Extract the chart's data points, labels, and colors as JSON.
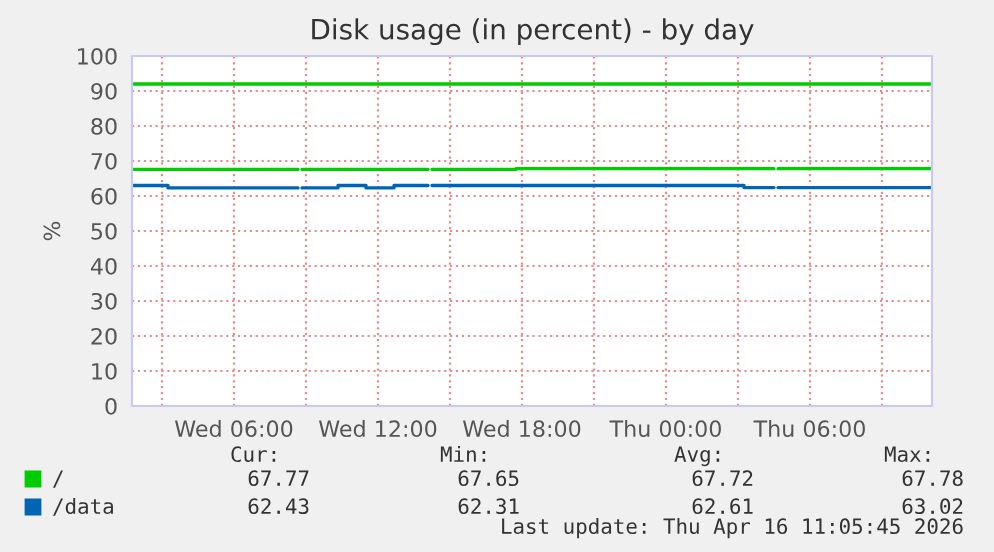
{
  "chart_data": {
    "type": "step",
    "title": "Disk usage (in percent) - by day",
    "ylabel": "%",
    "x": [
      "2026-04-15T01:45",
      "2026-04-15T03:15",
      "2026-04-15T08:40",
      "2026-04-15T08:50",
      "2026-04-15T10:20",
      "2026-04-15T11:30",
      "2026-04-15T12:40",
      "2026-04-15T14:05",
      "2026-04-15T14:15",
      "2026-04-15T17:45",
      "2026-04-16T03:15",
      "2026-04-16T04:30",
      "2026-04-16T04:40",
      "2026-04-16T11:05"
    ],
    "series": [
      {
        "name": "/",
        "color": "#00cc00",
        "values": [
          67.6,
          67.6,
          null,
          67.6,
          67.6,
          67.6,
          67.6,
          null,
          67.6,
          67.8,
          67.8,
          null,
          67.8,
          67.8
        ]
      },
      {
        "name": "/data",
        "color": "#0066b3",
        "values": [
          63.0,
          62.3,
          null,
          62.3,
          63.0,
          62.3,
          63.0,
          null,
          63.0,
          63.0,
          62.4,
          null,
          62.4,
          62.4
        ]
      },
      {
        "color": "#00cc00",
        "x": [
          "2026-04-15T01:45",
          "2026-04-16T11:05"
        ],
        "values": [
          92,
          92
        ]
      }
    ],
    "xlim": [
      "2026-04-15T01:45",
      "2026-04-16T11:05"
    ],
    "xticks": [
      {
        "value": "2026-04-15T03:00",
        "label": null
      },
      {
        "value": "2026-04-15T06:00",
        "label": "Wed 06:00"
      },
      {
        "value": "2026-04-15T09:00",
        "label": null
      },
      {
        "value": "2026-04-15T12:00",
        "label": "Wed 12:00"
      },
      {
        "value": "2026-04-15T15:00",
        "label": null
      },
      {
        "value": "2026-04-15T18:00",
        "label": "Wed 18:00"
      },
      {
        "value": "2026-04-15T21:00",
        "label": null
      },
      {
        "value": "2026-04-16T00:00",
        "label": "Thu 00:00"
      },
      {
        "value": "2026-04-16T03:00",
        "label": null
      },
      {
        "value": "2026-04-16T06:00",
        "label": "Thu 06:00"
      },
      {
        "value": "2026-04-16T09:00",
        "label": null
      }
    ],
    "ylim": [
      0,
      100
    ],
    "yticks": [
      0,
      10,
      20,
      30,
      40,
      50,
      60,
      70,
      80,
      90,
      100
    ],
    "grid": true,
    "legend": "bottom",
    "annotations": [
      "Cur:",
      "Min:",
      "Avg:",
      "Max:",
      "67.77",
      "67.65",
      "67.72",
      "67.78",
      "62.43",
      "62.31",
      "62.61",
      "63.02",
      "Last update: Thu Apr 16 11:05:45 2026"
    ]
  }
}
